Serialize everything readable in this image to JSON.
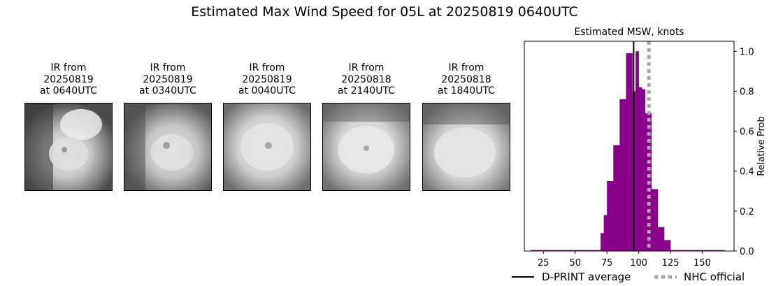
{
  "figure": {
    "title": "Estimated Max Wind Speed for 05L at 20250819 0640UTC"
  },
  "panels": [
    {
      "lines": [
        "IR from",
        "20250819",
        "at 0640UTC"
      ]
    },
    {
      "lines": [
        "IR from",
        "20250819",
        "at 0340UTC"
      ]
    },
    {
      "lines": [
        "IR from",
        "20250819",
        "at 0040UTC"
      ]
    },
    {
      "lines": [
        "IR from",
        "20250818",
        "at 2140UTC"
      ]
    },
    {
      "lines": [
        "IR from",
        "20250818",
        "at 1840UTC"
      ]
    }
  ],
  "chart_data": {
    "type": "bar",
    "title": "Estimated MSW, knots",
    "xlabel": "",
    "ylabel": "Relative Prob",
    "xlim": [
      10,
      175
    ],
    "ylim": [
      0,
      1.05
    ],
    "xticks": [
      25,
      50,
      75,
      100,
      125,
      150
    ],
    "yticks": [
      "0.0",
      "0.2",
      "0.4",
      "0.6",
      "0.8",
      "1.0"
    ],
    "bin_width": 2.5,
    "bins": [
      [
        15,
        0.005
      ],
      [
        17.5,
        0.005
      ],
      [
        20,
        0.005
      ],
      [
        22.5,
        0.005
      ],
      [
        25,
        0.005
      ],
      [
        27.5,
        0.005
      ],
      [
        30,
        0.005
      ],
      [
        32.5,
        0.005
      ],
      [
        35,
        0.005
      ],
      [
        37.5,
        0.005
      ],
      [
        40,
        0.005
      ],
      [
        42.5,
        0.005
      ],
      [
        45,
        0.005
      ],
      [
        47.5,
        0.005
      ],
      [
        50,
        0.005
      ],
      [
        52.5,
        0.005
      ],
      [
        55,
        0.005
      ],
      [
        57.5,
        0.005
      ],
      [
        60,
        0.005
      ],
      [
        62.5,
        0.005
      ],
      [
        65,
        0.005
      ],
      [
        67.5,
        0.005
      ],
      [
        70,
        0.09
      ],
      [
        72.5,
        0.18
      ],
      [
        75,
        0.35
      ],
      [
        77.5,
        0.35
      ],
      [
        80,
        0.53
      ],
      [
        82.5,
        0.53
      ],
      [
        85,
        0.76
      ],
      [
        87.5,
        0.76
      ],
      [
        90,
        0.99
      ],
      [
        92.5,
        0.99
      ],
      [
        95,
        0.8
      ],
      [
        97.5,
        1.0
      ],
      [
        100,
        0.82
      ],
      [
        102.5,
        0.81
      ],
      [
        105,
        0.69
      ],
      [
        107.5,
        0.69
      ],
      [
        110,
        0.31
      ],
      [
        112.5,
        0.31
      ],
      [
        115,
        0.12
      ],
      [
        117.5,
        0.12
      ],
      [
        120,
        0.055
      ],
      [
        122.5,
        0.055
      ],
      [
        125,
        0.005
      ],
      [
        127.5,
        0.005
      ],
      [
        130,
        0.005
      ],
      [
        132.5,
        0.005
      ],
      [
        135,
        0.005
      ],
      [
        137.5,
        0.005
      ],
      [
        140,
        0.005
      ],
      [
        142.5,
        0.005
      ],
      [
        145,
        0.005
      ],
      [
        147.5,
        0.005
      ],
      [
        150,
        0.005
      ],
      [
        152.5,
        0.005
      ],
      [
        155,
        0.005
      ],
      [
        157.5,
        0.005
      ],
      [
        160,
        0.005
      ],
      [
        162.5,
        0.005
      ],
      [
        165,
        0.005
      ]
    ],
    "dprint_average": 96,
    "nhc_official": 108,
    "bar_color": "#8b008b",
    "legend": [
      {
        "label": "D-PRINT average",
        "color": "#000000",
        "style": "solid"
      },
      {
        "label": "NHC official",
        "color": "#a6a6a6",
        "style": "dotted"
      }
    ],
    "legend_loc": "bottom"
  }
}
